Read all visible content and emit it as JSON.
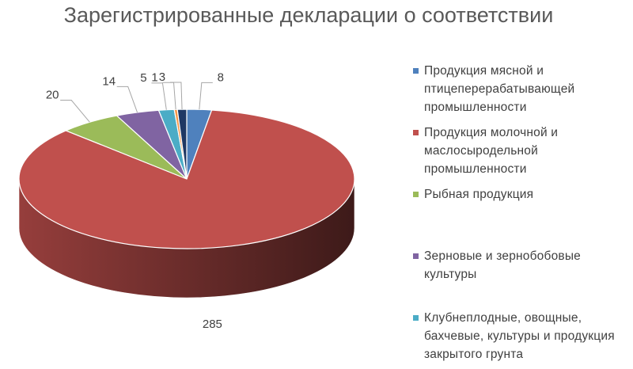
{
  "chart_data": {
    "type": "pie",
    "title": "Зарегистрированные декларации о соответствии",
    "legend_position": "right",
    "slices": [
      {
        "label": "Продукция мясной и птицеперерабатывающей промышленности",
        "value": 8,
        "color": "#4F81BD"
      },
      {
        "label": "Продукция молочной и маслосыродельной промышленности",
        "value": 285,
        "color": "#C0504D"
      },
      {
        "label": "Рыбная продукция",
        "value": 20,
        "color": "#9BBB59"
      },
      {
        "label": "Зерновые и зернобобовые культуры",
        "value": 14,
        "color": "#8064A2"
      },
      {
        "label": "Клубнеплодные, овощные, бахчевые, культуры и продукция закрытого грунта",
        "value": 5,
        "color": "#4BACC6"
      },
      {
        "label": "",
        "value": 1,
        "color": "#F79646"
      },
      {
        "label": "",
        "value": 3,
        "color": "#1F3864"
      }
    ],
    "legend": [
      {
        "lines": [
          "Продукция мясной и",
          "птицеперерабатывающей",
          "промышленности"
        ],
        "color": "#4F81BD"
      },
      {
        "lines": [
          "Продукция молочной и",
          "маслосыродельной",
          "промышленности"
        ],
        "color": "#C0504D"
      },
      {
        "lines": [
          "Рыбная продукция"
        ],
        "color": "#9BBB59"
      },
      {
        "lines": [
          "Зерновые и зернобобовые",
          "культуры"
        ],
        "color": "#8064A2"
      },
      {
        "lines": [
          "Клубнеплодные, овощные,",
          "бахчевые, культуры и продукция",
          "закрытого грунта"
        ],
        "color": "#4BACC6"
      }
    ]
  }
}
